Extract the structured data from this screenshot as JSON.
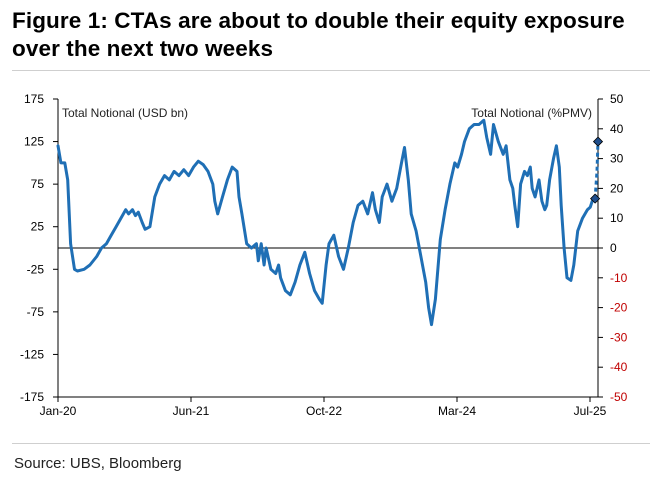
{
  "figure": {
    "title": "Figure 1: CTAs are about to double their equity exposure over the next two weeks",
    "source": "Source: UBS, Bloomberg"
  },
  "colors": {
    "line": "#1f6fb5",
    "marker": "#1f4e8c",
    "left_axis_text": "#000000",
    "right_neg_text": "#c00000",
    "right_pos_text": "#000000"
  },
  "chart_data": {
    "type": "line",
    "title": "",
    "xlabel": "",
    "x_ticks": [
      "Jan-20",
      "Jun-21",
      "Oct-22",
      "Mar-24",
      "Jul-25"
    ],
    "x_range": [
      2020.0,
      2025.58
    ],
    "left_axis": {
      "label": "Total Notional (USD bn)",
      "ticks": [
        "175",
        "125",
        "75",
        "25",
        "-25",
        "-75",
        "-125",
        "-175"
      ],
      "ylim": [
        -175,
        175
      ]
    },
    "right_axis": {
      "label": "Total Notional (%PMV)",
      "ticks": [
        "50",
        "40",
        "30",
        "20",
        "10",
        "0",
        "-10",
        "-20",
        "-30",
        "-40",
        "-50"
      ],
      "ylim": [
        -50,
        50
      ]
    },
    "grid": false,
    "zero_line": true,
    "series": [
      {
        "axis": "left",
        "points": [
          [
            2020.0,
            120
          ],
          [
            2020.03,
            100
          ],
          [
            2020.07,
            100
          ],
          [
            2020.1,
            80
          ],
          [
            2020.13,
            5
          ],
          [
            2020.17,
            -25
          ],
          [
            2020.2,
            -27
          ],
          [
            2020.27,
            -25
          ],
          [
            2020.33,
            -20
          ],
          [
            2020.4,
            -10
          ],
          [
            2020.45,
            0
          ],
          [
            2020.5,
            5
          ],
          [
            2020.55,
            15
          ],
          [
            2020.6,
            25
          ],
          [
            2020.65,
            35
          ],
          [
            2020.7,
            45
          ],
          [
            2020.73,
            40
          ],
          [
            2020.77,
            45
          ],
          [
            2020.8,
            38
          ],
          [
            2020.83,
            42
          ],
          [
            2020.87,
            30
          ],
          [
            2020.9,
            22
          ],
          [
            2020.95,
            25
          ],
          [
            2021.0,
            60
          ],
          [
            2021.05,
            75
          ],
          [
            2021.1,
            85
          ],
          [
            2021.15,
            80
          ],
          [
            2021.2,
            90
          ],
          [
            2021.25,
            85
          ],
          [
            2021.3,
            92
          ],
          [
            2021.35,
            85
          ],
          [
            2021.4,
            95
          ],
          [
            2021.45,
            102
          ],
          [
            2021.5,
            98
          ],
          [
            2021.55,
            90
          ],
          [
            2021.6,
            75
          ],
          [
            2021.62,
            55
          ],
          [
            2021.65,
            40
          ],
          [
            2021.7,
            60
          ],
          [
            2021.75,
            80
          ],
          [
            2021.8,
            95
          ],
          [
            2021.85,
            90
          ],
          [
            2021.87,
            60
          ],
          [
            2021.9,
            40
          ],
          [
            2021.95,
            5
          ],
          [
            2022.0,
            0
          ],
          [
            2022.05,
            5
          ],
          [
            2022.07,
            -15
          ],
          [
            2022.1,
            5
          ],
          [
            2022.13,
            -20
          ],
          [
            2022.15,
            0
          ],
          [
            2022.18,
            -15
          ],
          [
            2022.2,
            -25
          ],
          [
            2022.25,
            -30
          ],
          [
            2022.28,
            -20
          ],
          [
            2022.3,
            -35
          ],
          [
            2022.35,
            -50
          ],
          [
            2022.4,
            -55
          ],
          [
            2022.45,
            -40
          ],
          [
            2022.5,
            -20
          ],
          [
            2022.55,
            -5
          ],
          [
            2022.6,
            -30
          ],
          [
            2022.65,
            -50
          ],
          [
            2022.7,
            -60
          ],
          [
            2022.73,
            -65
          ],
          [
            2022.77,
            -20
          ],
          [
            2022.8,
            5
          ],
          [
            2022.85,
            15
          ],
          [
            2022.9,
            -10
          ],
          [
            2022.95,
            -25
          ],
          [
            2023.0,
            0
          ],
          [
            2023.05,
            30
          ],
          [
            2023.1,
            50
          ],
          [
            2023.15,
            55
          ],
          [
            2023.2,
            40
          ],
          [
            2023.25,
            65
          ],
          [
            2023.28,
            45
          ],
          [
            2023.32,
            30
          ],
          [
            2023.35,
            60
          ],
          [
            2023.4,
            75
          ],
          [
            2023.45,
            55
          ],
          [
            2023.5,
            70
          ],
          [
            2023.55,
            100
          ],
          [
            2023.58,
            118
          ],
          [
            2023.62,
            80
          ],
          [
            2023.65,
            40
          ],
          [
            2023.7,
            20
          ],
          [
            2023.75,
            -10
          ],
          [
            2023.8,
            -40
          ],
          [
            2023.83,
            -70
          ],
          [
            2023.86,
            -90
          ],
          [
            2023.9,
            -60
          ],
          [
            2023.95,
            10
          ],
          [
            2024.0,
            45
          ],
          [
            2024.05,
            75
          ],
          [
            2024.08,
            90
          ],
          [
            2024.1,
            100
          ],
          [
            2024.13,
            95
          ],
          [
            2024.17,
            110
          ],
          [
            2024.2,
            125
          ],
          [
            2024.25,
            140
          ],
          [
            2024.3,
            145
          ],
          [
            2024.35,
            145
          ],
          [
            2024.4,
            150
          ],
          [
            2024.43,
            130
          ],
          [
            2024.47,
            110
          ],
          [
            2024.5,
            145
          ],
          [
            2024.55,
            125
          ],
          [
            2024.6,
            110
          ],
          [
            2024.63,
            120
          ],
          [
            2024.67,
            80
          ],
          [
            2024.7,
            70
          ],
          [
            2024.72,
            50
          ],
          [
            2024.75,
            25
          ],
          [
            2024.78,
            75
          ],
          [
            2024.82,
            90
          ],
          [
            2024.85,
            85
          ],
          [
            2024.88,
            95
          ],
          [
            2024.9,
            70
          ],
          [
            2024.93,
            60
          ],
          [
            2024.97,
            80
          ],
          [
            2025.0,
            55
          ],
          [
            2025.03,
            45
          ],
          [
            2025.05,
            50
          ],
          [
            2025.08,
            80
          ],
          [
            2025.12,
            105
          ],
          [
            2025.15,
            120
          ],
          [
            2025.18,
            95
          ],
          [
            2025.2,
            50
          ],
          [
            2025.23,
            0
          ],
          [
            2025.26,
            -35
          ],
          [
            2025.3,
            -38
          ],
          [
            2025.33,
            -20
          ],
          [
            2025.37,
            20
          ],
          [
            2025.42,
            35
          ],
          [
            2025.47,
            45
          ],
          [
            2025.5,
            48
          ],
          [
            2025.52,
            55
          ],
          [
            2025.55,
            58
          ]
        ]
      },
      {
        "axis": "left",
        "style": "dashed",
        "points": [
          [
            2025.55,
            58
          ],
          [
            2025.57,
            90
          ],
          [
            2025.58,
            125
          ]
        ]
      }
    ],
    "markers": [
      {
        "x": 2025.55,
        "y": 58,
        "axis": "left"
      },
      {
        "x": 2025.58,
        "y": 125,
        "axis": "left"
      }
    ]
  }
}
